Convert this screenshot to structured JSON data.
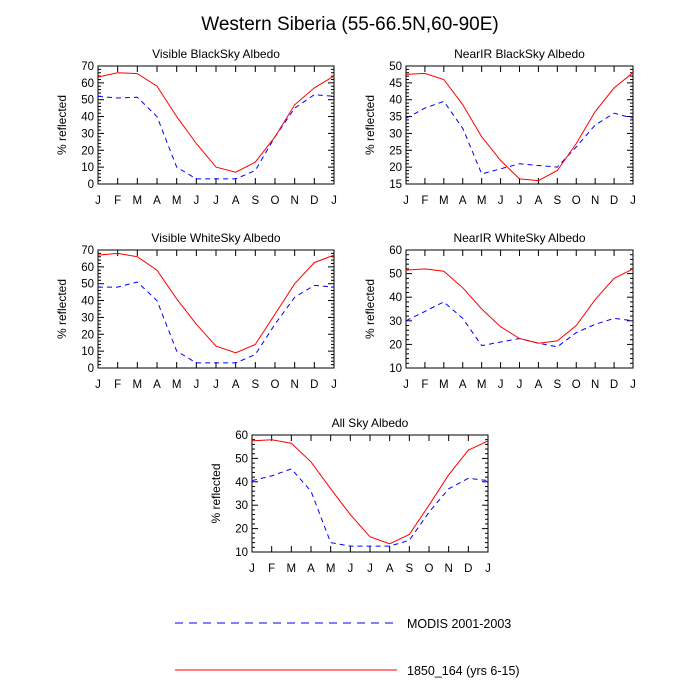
{
  "title": "Western Siberia (55-66.5N,60-90E)",
  "legend": [
    {
      "label": "MODIS 2001-2003",
      "color": "#0000ff",
      "dash": "dashed"
    },
    {
      "label": "1850_164 (yrs 6-15)",
      "color": "#ff0000",
      "dash": "solid"
    }
  ],
  "chart_data": [
    {
      "type": "line",
      "title": "Visible BlackSky Albedo",
      "ylabel": "% reflected",
      "categories": [
        "J",
        "F",
        "M",
        "A",
        "M",
        "J",
        "J",
        "A",
        "S",
        "O",
        "N",
        "D",
        "J"
      ],
      "ylim": [
        0,
        70
      ],
      "yticks": [
        0,
        10,
        20,
        30,
        40,
        50,
        60,
        70
      ],
      "series": [
        {
          "name": "MODIS 2001-2003",
          "values": [
            52,
            51,
            51.5,
            40,
            10,
            3,
            3,
            3,
            8,
            28,
            45,
            53,
            52
          ]
        },
        {
          "name": "1850_164 (yrs 6-15)",
          "values": [
            63.5,
            66,
            65.5,
            58,
            40,
            24,
            10,
            7,
            13,
            28,
            47,
            57,
            64
          ]
        }
      ]
    },
    {
      "type": "line",
      "title": "NearIR BlackSky Albedo",
      "ylabel": "% reflected",
      "categories": [
        "J",
        "F",
        "M",
        "A",
        "M",
        "J",
        "J",
        "A",
        "S",
        "O",
        "N",
        "D",
        "J"
      ],
      "ylim": [
        15,
        50
      ],
      "yticks": [
        15,
        20,
        25,
        30,
        35,
        40,
        45,
        50
      ],
      "series": [
        {
          "name": "MODIS 2001-2003",
          "values": [
            34.5,
            37.5,
            39.5,
            31.5,
            18,
            19.5,
            21,
            20.5,
            20,
            26,
            32.5,
            36,
            34.5
          ]
        },
        {
          "name": "1850_164 (yrs 6-15)",
          "values": [
            47.5,
            47.8,
            46,
            38.5,
            29,
            22,
            16.5,
            16,
            19,
            27,
            36.5,
            43.5,
            48
          ]
        }
      ]
    },
    {
      "type": "line",
      "title": "Visible WhiteSky Albedo",
      "ylabel": "% reflected",
      "categories": [
        "J",
        "F",
        "M",
        "A",
        "M",
        "J",
        "J",
        "A",
        "S",
        "O",
        "N",
        "D",
        "J"
      ],
      "ylim": [
        0,
        70
      ],
      "yticks": [
        0,
        10,
        20,
        30,
        40,
        50,
        60,
        70
      ],
      "series": [
        {
          "name": "MODIS 2001-2003",
          "values": [
            48,
            48,
            51,
            40,
            10,
            3,
            3,
            3,
            8,
            26,
            42,
            49,
            48
          ]
        },
        {
          "name": "1850_164 (yrs 6-15)",
          "values": [
            67,
            68,
            66,
            58,
            41,
            26,
            13,
            9,
            14,
            32,
            50,
            62.5,
            67
          ]
        }
      ]
    },
    {
      "type": "line",
      "title": "NearIR WhiteSky Albedo",
      "ylabel": "% reflected",
      "categories": [
        "J",
        "F",
        "M",
        "A",
        "M",
        "J",
        "J",
        "A",
        "S",
        "O",
        "N",
        "D",
        "J"
      ],
      "ylim": [
        10,
        60
      ],
      "yticks": [
        10,
        20,
        30,
        40,
        50,
        60
      ],
      "series": [
        {
          "name": "MODIS 2001-2003",
          "values": [
            30,
            34,
            38,
            31,
            19.5,
            21,
            22.5,
            20.5,
            19,
            25,
            28.5,
            31,
            30
          ]
        },
        {
          "name": "1850_164 (yrs 6-15)",
          "values": [
            51.5,
            52,
            51,
            44,
            35,
            27.5,
            22.5,
            20.5,
            21.5,
            28,
            39,
            48,
            52
          ]
        }
      ]
    },
    {
      "type": "line",
      "title": "All Sky Albedo",
      "ylabel": "% reflected",
      "categories": [
        "J",
        "F",
        "M",
        "A",
        "M",
        "J",
        "J",
        "A",
        "S",
        "O",
        "N",
        "D",
        "J"
      ],
      "ylim": [
        10,
        60
      ],
      "yticks": [
        10,
        20,
        30,
        40,
        50,
        60
      ],
      "series": [
        {
          "name": "MODIS 2001-2003",
          "values": [
            40.5,
            42.5,
            45.5,
            36,
            14,
            12.5,
            12.5,
            12.5,
            15,
            27,
            37,
            41.5,
            40.5
          ]
        },
        {
          "name": "1850_164 (yrs 6-15)",
          "values": [
            57.5,
            58,
            56.5,
            48.5,
            37,
            26,
            16.5,
            13.5,
            17.5,
            30,
            43,
            53.5,
            57.5
          ]
        }
      ]
    }
  ]
}
